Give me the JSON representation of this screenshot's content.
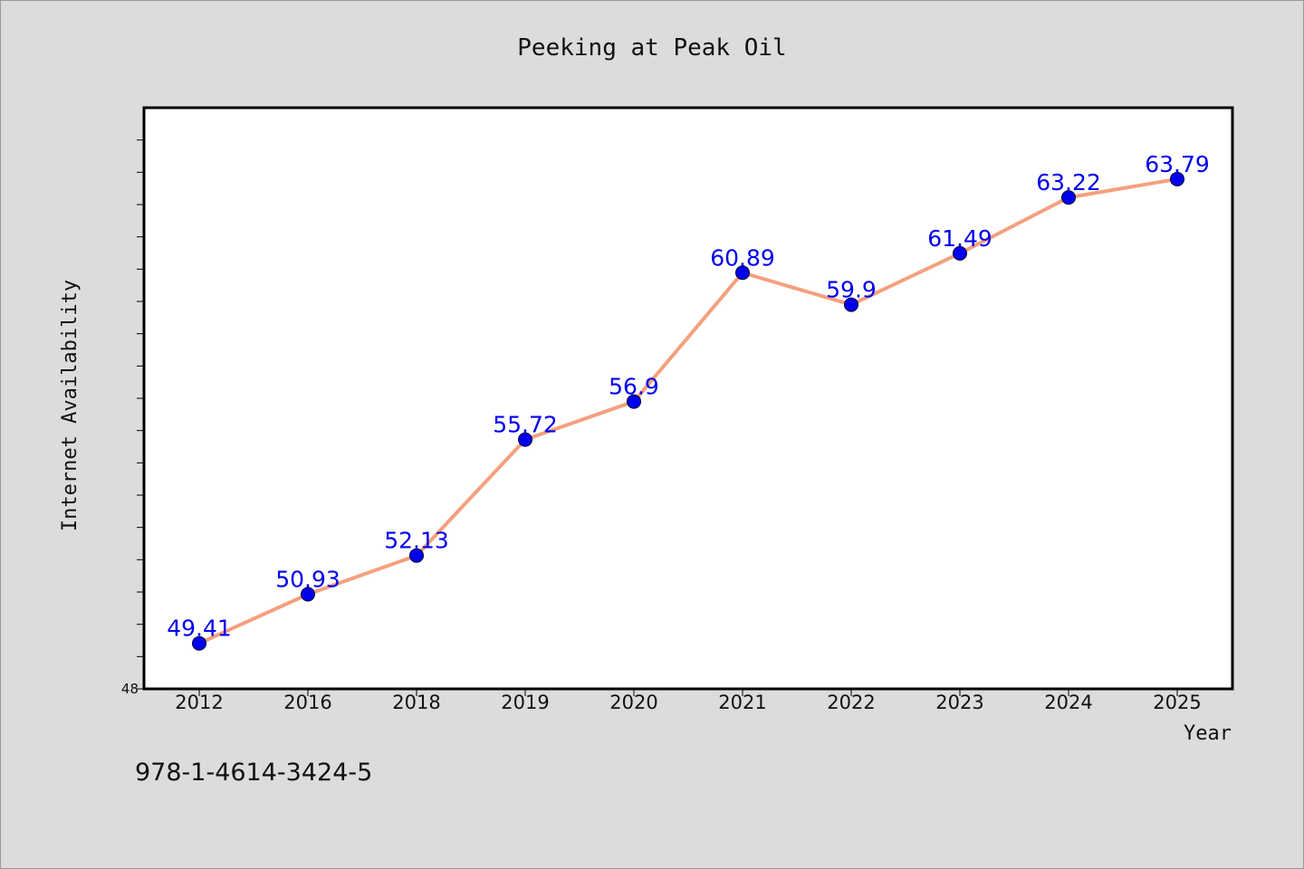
{
  "chart_data": {
    "type": "line",
    "title": "Peeking at Peak Oil",
    "xlabel": "Year",
    "ylabel": "Internet Availability",
    "categories": [
      "2012",
      "2016",
      "2018",
      "2019",
      "2020",
      "2021",
      "2022",
      "2023",
      "2024",
      "2025"
    ],
    "series": [
      {
        "values": [
          49.41,
          50.93,
          52.13,
          55.72,
          56.9,
          60.89,
          59.9,
          61.49,
          63.22,
          63.79
        ],
        "labels": [
          "49.41",
          "50.93",
          "52.13",
          "55.72",
          "56.9",
          "60.89",
          "59.9",
          "61.49",
          "63.22",
          "63.79"
        ],
        "line_color": "#f4a07e",
        "marker_color": "#0000ee",
        "label_color": "#0000ee"
      }
    ],
    "ylim": [
      48,
      66
    ],
    "y_tick_labels": [
      "48"
    ],
    "grid": false,
    "legend": "none"
  },
  "footer": {
    "text": "978-1-4614-3424-5"
  }
}
